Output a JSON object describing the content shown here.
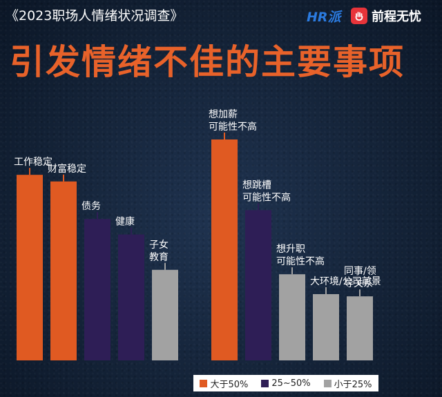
{
  "header": {
    "survey_title": "《2023职场人情绪状况调查》",
    "logo_hr_text": "HR",
    "logo_hr_suffix": "派",
    "logo_brand_name": "前程无忧"
  },
  "chart_data": {
    "type": "bar",
    "title": "引发情绪不佳的主要事项",
    "ylim": [
      0,
      100
    ],
    "colors": {
      "大于50%": "#e05a22",
      "25~50%": "#2e1e56",
      "小于25%": "#a2a2a2"
    },
    "groups": [
      {
        "bars": [
          {
            "label": "工作稳定",
            "value": 84,
            "category": "大于50%"
          },
          {
            "label": "财富稳定",
            "value": 81,
            "category": "大于50%"
          },
          {
            "label": "债务",
            "value": 64,
            "category": "25~50%"
          },
          {
            "label": "健康",
            "value": 57,
            "category": "25~50%"
          },
          {
            "label": "子女\n教育",
            "value": 41,
            "category": "小于25%"
          }
        ]
      },
      {
        "bars": [
          {
            "label": "想加薪\n可能性不高",
            "value": 100,
            "category": "大于50%"
          },
          {
            "label": "想跳槽\n可能性不高",
            "value": 68,
            "category": "25~50%"
          },
          {
            "label": "想升职\n可能性不高",
            "value": 39,
            "category": "小于25%"
          },
          {
            "label": "大环境/公司前景",
            "value": 30,
            "category": "小于25%"
          },
          {
            "label": "同事/领\n导关系",
            "value": 29,
            "category": "小于25%"
          }
        ]
      }
    ],
    "legend": {
      "position": "bottom-center",
      "entries": [
        "大于50%",
        "25~50%",
        "小于25%"
      ]
    }
  }
}
